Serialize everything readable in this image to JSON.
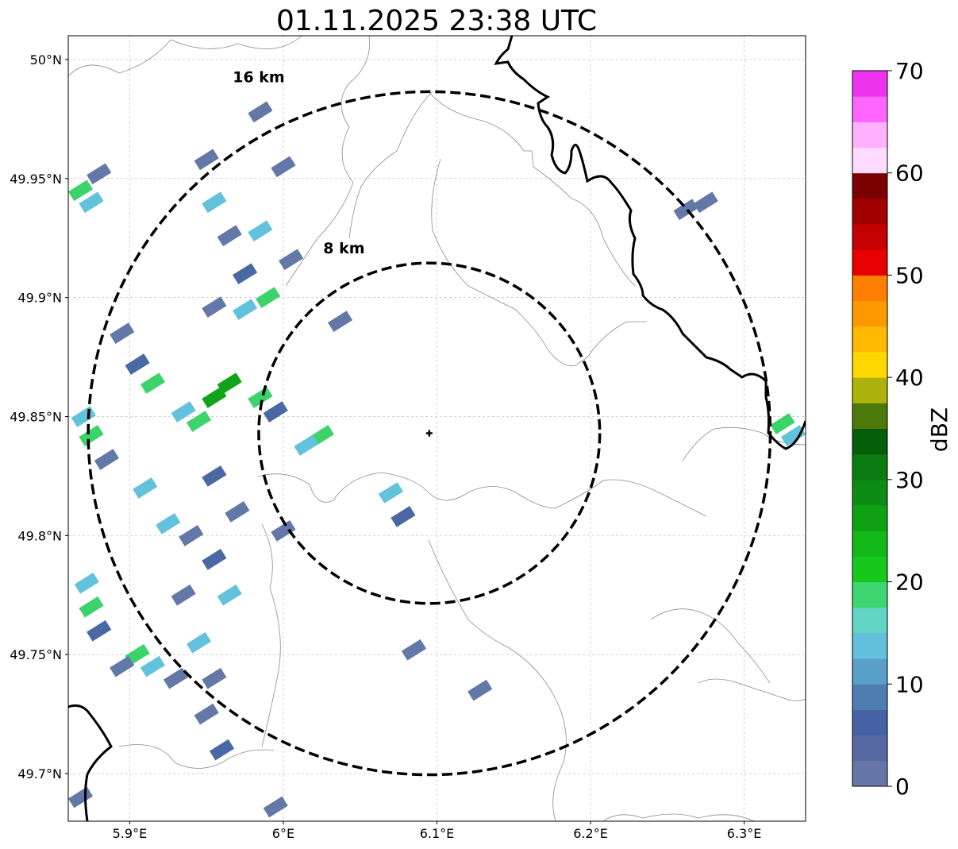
{
  "title": "01.11.2025 23:38 UTC",
  "map": {
    "lon_range": [
      5.86,
      6.34
    ],
    "lat_range": [
      49.68,
      50.01
    ],
    "x_ticks": [
      {
        "value": 5.9,
        "label": "5.9°E"
      },
      {
        "value": 6.0,
        "label": "6°E"
      },
      {
        "value": 6.1,
        "label": "6.1°E"
      },
      {
        "value": 6.2,
        "label": "6.2°E"
      },
      {
        "value": 6.3,
        "label": "6.3°E"
      }
    ],
    "y_ticks": [
      {
        "value": 50.0,
        "label": "50°N"
      },
      {
        "value": 49.95,
        "label": "49.95°N"
      },
      {
        "value": 49.9,
        "label": "49.9°N"
      },
      {
        "value": 49.85,
        "label": "49.85°N"
      },
      {
        "value": 49.8,
        "label": "49.8°N"
      },
      {
        "value": 49.75,
        "label": "49.75°N"
      },
      {
        "value": 49.7,
        "label": "49.7°N"
      }
    ],
    "grid": true,
    "radar_site": {
      "lon": 6.095,
      "lat": 49.843
    },
    "range_rings": [
      {
        "label": "8 km",
        "lon_radius": 0.111,
        "lat_radius": 0.0715
      },
      {
        "label": "16 km",
        "lon_radius": 0.222,
        "lat_radius": 0.1435
      }
    ]
  },
  "echoes": [
    {
      "lon": 6.025,
      "lat": 49.842,
      "level": "green"
    },
    {
      "lon": 6.015,
      "lat": 49.838,
      "level": "cyan"
    },
    {
      "lon": 5.995,
      "lat": 49.852,
      "level": "blue"
    },
    {
      "lon": 5.985,
      "lat": 49.858,
      "level": "green"
    },
    {
      "lon": 5.965,
      "lat": 49.864,
      "level": "darkgreen"
    },
    {
      "lon": 5.955,
      "lat": 49.858,
      "level": "darkgreen"
    },
    {
      "lon": 5.945,
      "lat": 49.848,
      "level": "green"
    },
    {
      "lon": 5.935,
      "lat": 49.852,
      "level": "cyan"
    },
    {
      "lon": 5.915,
      "lat": 49.864,
      "level": "green"
    },
    {
      "lon": 5.905,
      "lat": 49.872,
      "level": "blue"
    },
    {
      "lon": 5.895,
      "lat": 49.885,
      "level": "slate"
    },
    {
      "lon": 5.875,
      "lat": 49.842,
      "level": "green"
    },
    {
      "lon": 5.87,
      "lat": 49.85,
      "level": "cyan"
    },
    {
      "lon": 5.885,
      "lat": 49.832,
      "level": "slate"
    },
    {
      "lon": 5.875,
      "lat": 49.94,
      "level": "cyan"
    },
    {
      "lon": 5.868,
      "lat": 49.945,
      "level": "green"
    },
    {
      "lon": 5.88,
      "lat": 49.952,
      "level": "slate"
    },
    {
      "lon": 5.955,
      "lat": 49.94,
      "level": "cyan"
    },
    {
      "lon": 5.965,
      "lat": 49.926,
      "level": "slate"
    },
    {
      "lon": 5.985,
      "lat": 49.928,
      "level": "cyan"
    },
    {
      "lon": 5.975,
      "lat": 49.91,
      "level": "blue"
    },
    {
      "lon": 5.99,
      "lat": 49.9,
      "level": "green"
    },
    {
      "lon": 5.975,
      "lat": 49.895,
      "level": "cyan"
    },
    {
      "lon": 5.955,
      "lat": 49.896,
      "level": "slate"
    },
    {
      "lon": 6.005,
      "lat": 49.916,
      "level": "slate"
    },
    {
      "lon": 5.95,
      "lat": 49.958,
      "level": "slate"
    },
    {
      "lon": 5.985,
      "lat": 49.978,
      "level": "slate"
    },
    {
      "lon": 6.0,
      "lat": 49.955,
      "level": "slate"
    },
    {
      "lon": 6.037,
      "lat": 49.89,
      "level": "slate"
    },
    {
      "lon": 5.91,
      "lat": 49.82,
      "level": "cyan"
    },
    {
      "lon": 5.925,
      "lat": 49.805,
      "level": "cyan"
    },
    {
      "lon": 5.94,
      "lat": 49.8,
      "level": "slate"
    },
    {
      "lon": 5.955,
      "lat": 49.79,
      "level": "blue"
    },
    {
      "lon": 5.97,
      "lat": 49.81,
      "level": "slate"
    },
    {
      "lon": 5.935,
      "lat": 49.775,
      "level": "slate"
    },
    {
      "lon": 5.965,
      "lat": 49.775,
      "level": "cyan"
    },
    {
      "lon": 5.955,
      "lat": 49.825,
      "level": "blue"
    },
    {
      "lon": 5.875,
      "lat": 49.77,
      "level": "green"
    },
    {
      "lon": 5.872,
      "lat": 49.78,
      "level": "cyan"
    },
    {
      "lon": 5.88,
      "lat": 49.76,
      "level": "blue"
    },
    {
      "lon": 5.905,
      "lat": 49.75,
      "level": "green"
    },
    {
      "lon": 5.915,
      "lat": 49.745,
      "level": "cyan"
    },
    {
      "lon": 5.93,
      "lat": 49.74,
      "level": "slate"
    },
    {
      "lon": 5.945,
      "lat": 49.755,
      "level": "cyan"
    },
    {
      "lon": 5.955,
      "lat": 49.74,
      "level": "slate"
    },
    {
      "lon": 5.95,
      "lat": 49.725,
      "level": "slate"
    },
    {
      "lon": 5.96,
      "lat": 49.71,
      "level": "blue"
    },
    {
      "lon": 5.895,
      "lat": 49.745,
      "level": "slate"
    },
    {
      "lon": 6.07,
      "lat": 49.818,
      "level": "cyan"
    },
    {
      "lon": 6.078,
      "lat": 49.808,
      "level": "blue"
    },
    {
      "lon": 6.0,
      "lat": 49.802,
      "level": "slate"
    },
    {
      "lon": 6.085,
      "lat": 49.752,
      "level": "slate"
    },
    {
      "lon": 6.128,
      "lat": 49.735,
      "level": "slate"
    },
    {
      "lon": 6.262,
      "lat": 49.937,
      "level": "slate"
    },
    {
      "lon": 6.275,
      "lat": 49.94,
      "level": "slate"
    },
    {
      "lon": 6.325,
      "lat": 49.847,
      "level": "green"
    },
    {
      "lon": 6.332,
      "lat": 49.842,
      "level": "cyan"
    },
    {
      "lon": 5.868,
      "lat": 49.69,
      "level": "slate"
    },
    {
      "lon": 5.995,
      "lat": 49.686,
      "level": "slate"
    }
  ],
  "colors": {
    "slate": "#6478a8",
    "blue": "#4a68a4",
    "cyan": "#62c2dc",
    "green": "#3cd46a",
    "darkgreen": "#12a418"
  },
  "colorbar": {
    "label": "dBZ",
    "min": 0,
    "max": 70,
    "tick_values": [
      0,
      10,
      20,
      30,
      40,
      50,
      60,
      70
    ],
    "tick_labels": [
      "0",
      "10",
      "20",
      "30",
      "40",
      "50",
      "60",
      "70"
    ],
    "levels": [
      "#6676a7",
      "#5669a2",
      "#4562a5",
      "#4e7db1",
      "#58a0c8",
      "#63c0dc",
      "#61d4c4",
      "#3ed671",
      "#14c91c",
      "#12b918",
      "#0fa114",
      "#0c8c12",
      "#0b7a10",
      "#055f0a",
      "#4c7a0a",
      "#adb30a",
      "#ffd700",
      "#ffb900",
      "#ff9900",
      "#ff7f00",
      "#e60000",
      "#c40000",
      "#a30000",
      "#7b0000",
      "#ffdaff",
      "#ffb1ff",
      "#ff66ff",
      "#ee33ee"
    ]
  }
}
